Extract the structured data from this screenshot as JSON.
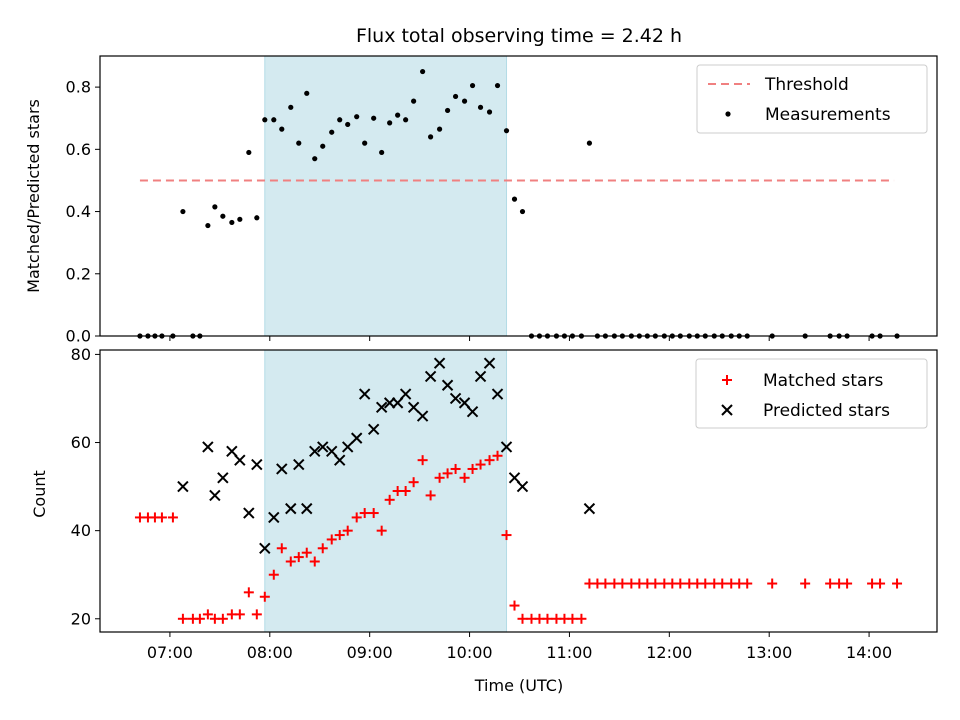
{
  "title": "Flux total observing time = 2.42 h",
  "chart_data": [
    {
      "type": "scatter",
      "panel": "top",
      "ylabel": "Matched/Predicted stars",
      "ylim": [
        0,
        0.9
      ],
      "yticks": [
        0.0,
        0.2,
        0.4,
        0.6,
        0.8
      ],
      "ytick_labels": [
        "0.0",
        "0.2",
        "0.4",
        "0.6",
        "0.8"
      ],
      "threshold": {
        "label": "Threshold",
        "value": 0.5,
        "x": [
          6.7,
          14.25
        ],
        "color": "#f08080"
      },
      "series": [
        {
          "name": "Measurements",
          "color": "#000000",
          "x": [
            6.7,
            6.78,
            6.85,
            6.92,
            7.03,
            7.13,
            7.23,
            7.3,
            7.38,
            7.45,
            7.53,
            7.62,
            7.7,
            7.79,
            7.87,
            7.95,
            8.04,
            8.12,
            8.21,
            8.29,
            8.37,
            8.45,
            8.53,
            8.62,
            8.7,
            8.78,
            8.87,
            8.95,
            9.04,
            9.12,
            9.2,
            9.28,
            9.36,
            9.44,
            9.53,
            9.61,
            9.7,
            9.78,
            9.86,
            9.95,
            10.03,
            10.11,
            10.2,
            10.28,
            10.37,
            10.45,
            10.53,
            10.62,
            10.7,
            10.78,
            10.87,
            10.95,
            11.03,
            11.12,
            11.2,
            11.28,
            11.36,
            11.45,
            11.53,
            11.62,
            11.7,
            11.78,
            11.86,
            11.95,
            12.03,
            12.11,
            12.2,
            12.28,
            12.36,
            12.45,
            12.53,
            12.62,
            12.7,
            12.78,
            13.03,
            13.36,
            13.61,
            13.7,
            13.78,
            14.03,
            14.11,
            14.28
          ],
          "y": [
            0.0,
            0.0,
            0.0,
            0.0,
            0.0,
            0.4,
            0.0,
            0.0,
            0.355,
            0.415,
            0.385,
            0.365,
            0.375,
            0.59,
            0.38,
            0.695,
            0.695,
            0.665,
            0.735,
            0.62,
            0.78,
            0.57,
            0.61,
            0.655,
            0.695,
            0.68,
            0.705,
            0.62,
            0.7,
            0.59,
            0.685,
            0.71,
            0.695,
            0.755,
            0.85,
            0.64,
            0.665,
            0.725,
            0.77,
            0.755,
            0.805,
            0.735,
            0.72,
            0.805,
            0.66,
            0.44,
            0.4,
            0.0,
            0.0,
            0.0,
            0.0,
            0.0,
            0.0,
            0.0,
            0.62,
            0.0,
            0.0,
            0.0,
            0.0,
            0.0,
            0.0,
            0.0,
            0.0,
            0.0,
            0.0,
            0.0,
            0.0,
            0.0,
            0.0,
            0.0,
            0.0,
            0.0,
            0.0,
            0.0,
            0.0,
            0.0,
            0.0,
            0.0,
            0.0,
            0.0,
            0.0,
            0.0
          ]
        }
      ],
      "shaded_span": [
        7.95,
        10.37
      ],
      "shade_color": "#d4eaf0",
      "legend": "top-right"
    },
    {
      "type": "scatter",
      "panel": "bottom",
      "xlabel": "Time (UTC)",
      "ylabel": "Count",
      "xlim": [
        6.3,
        14.68
      ],
      "xticks": [
        7,
        8,
        9,
        10,
        11,
        12,
        13,
        14
      ],
      "xtick_labels": [
        "07:00",
        "08:00",
        "09:00",
        "10:00",
        "11:00",
        "12:00",
        "13:00",
        "14:00"
      ],
      "ylim": [
        17,
        81
      ],
      "yticks": [
        20,
        40,
        60,
        80
      ],
      "ytick_labels": [
        "20",
        "40",
        "60",
        "80"
      ],
      "series": [
        {
          "name": "Matched stars",
          "marker": "plus",
          "color": "#ff0000",
          "x": [
            6.7,
            6.78,
            6.85,
            6.92,
            7.03,
            7.13,
            7.23,
            7.3,
            7.38,
            7.45,
            7.53,
            7.62,
            7.7,
            7.79,
            7.87,
            7.95,
            8.04,
            8.12,
            8.21,
            8.29,
            8.37,
            8.45,
            8.53,
            8.62,
            8.7,
            8.78,
            8.87,
            8.95,
            9.04,
            9.12,
            9.2,
            9.28,
            9.36,
            9.44,
            9.53,
            9.61,
            9.7,
            9.78,
            9.86,
            9.95,
            10.03,
            10.11,
            10.2,
            10.28,
            10.37,
            10.45,
            10.53,
            10.62,
            10.7,
            10.78,
            10.87,
            10.95,
            11.03,
            11.12,
            11.2,
            11.28,
            11.36,
            11.45,
            11.53,
            11.62,
            11.7,
            11.78,
            11.86,
            11.95,
            12.03,
            12.11,
            12.2,
            12.28,
            12.36,
            12.45,
            12.53,
            12.62,
            12.7,
            12.78,
            13.03,
            13.36,
            13.61,
            13.7,
            13.78,
            14.03,
            14.11,
            14.28
          ],
          "y": [
            43,
            43,
            43,
            43,
            43,
            20,
            20,
            20,
            21,
            20,
            20,
            21,
            21,
            26,
            21,
            25,
            30,
            36,
            33,
            34,
            35,
            33,
            36,
            38,
            39,
            40,
            43,
            44,
            44,
            40,
            47,
            49,
            49,
            51,
            56,
            48,
            52,
            53,
            54,
            52,
            54,
            55,
            56,
            57,
            39,
            23,
            20,
            20,
            20,
            20,
            20,
            20,
            20,
            20,
            28,
            28,
            28,
            28,
            28,
            28,
            28,
            28,
            28,
            28,
            28,
            28,
            28,
            28,
            28,
            28,
            28,
            28,
            28,
            28,
            28,
            28,
            28,
            28,
            28,
            28,
            28,
            28
          ]
        },
        {
          "name": "Predicted stars",
          "marker": "x",
          "color": "#000000",
          "x": [
            7.13,
            7.38,
            7.45,
            7.53,
            7.62,
            7.7,
            7.79,
            7.87,
            7.95,
            8.04,
            8.12,
            8.21,
            8.29,
            8.37,
            8.45,
            8.53,
            8.62,
            8.7,
            8.78,
            8.87,
            8.95,
            9.04,
            9.12,
            9.2,
            9.28,
            9.36,
            9.44,
            9.53,
            9.61,
            9.7,
            9.78,
            9.86,
            9.95,
            10.03,
            10.11,
            10.2,
            10.28,
            10.37,
            10.45,
            10.53,
            11.2
          ],
          "y": [
            50,
            59,
            48,
            52,
            58,
            56,
            44,
            55,
            36,
            43,
            54,
            45,
            55,
            45,
            58,
            59,
            58,
            56,
            59,
            61,
            71,
            63,
            68,
            69,
            69,
            71,
            68,
            66,
            75,
            78,
            73,
            70,
            69,
            67,
            75,
            78,
            71,
            59,
            52,
            50,
            45
          ]
        }
      ],
      "shaded_span": [
        7.95,
        10.37
      ],
      "shade_color": "#d4eaf0",
      "legend": "top-right"
    }
  ]
}
